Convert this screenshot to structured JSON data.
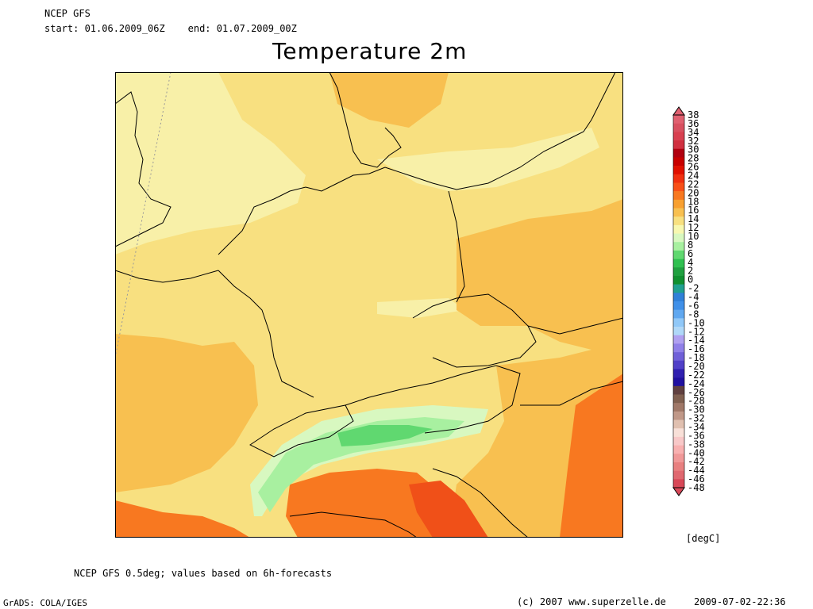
{
  "header": {
    "model": "NCEP GFS",
    "period": "start: 01.06.2009_06Z    end: 01.07.2009_00Z"
  },
  "title": "Temperature 2m",
  "colorbar": {
    "unit": "[degC]",
    "labels": [
      "38",
      "36",
      "34",
      "32",
      "30",
      "28",
      "26",
      "24",
      "22",
      "20",
      "18",
      "16",
      "14",
      "12",
      "10",
      "8",
      "6",
      "4",
      "2",
      "0",
      "-2",
      "-4",
      "-6",
      "-8",
      "-10",
      "-12",
      "-14",
      "-16",
      "-18",
      "-20",
      "-22",
      "-24",
      "-26",
      "-28",
      "-30",
      "-32",
      "-34",
      "-36",
      "-38",
      "-40",
      "-42",
      "-44",
      "-46",
      "-48"
    ],
    "colors": [
      "#e06070",
      "#d85060",
      "#d84050",
      "#d03040",
      "#b00010",
      "#c80000",
      "#e01000",
      "#f03010",
      "#f85018",
      "#f87820",
      "#f8a030",
      "#f8c050",
      "#f8e080",
      "#f8f8b0",
      "#d8f8c0",
      "#a8f0a0",
      "#60d870",
      "#30c050",
      "#20a040",
      "#109030",
      "#20a090",
      "#3080d8",
      "#4090e8",
      "#60a8f0",
      "#90c8f8",
      "#b0d8f8",
      "#b0a0f0",
      "#9080e8",
      "#7060d8",
      "#5040c8",
      "#3020b0",
      "#2010a0",
      "#604040",
      "#806050",
      "#a07868",
      "#c09888",
      "#e0c0b0",
      "#f8e0d8",
      "#f8c8c8",
      "#f8b0b0",
      "#f09898",
      "#e88080",
      "#e06870",
      "#d84858"
    ]
  },
  "footer": {
    "source": "NCEP GFS 0.5deg; values based on 6h-forecasts",
    "grads": "GrADS: COLA/IGES",
    "copyright": "(c) 2007 www.superzelle.de",
    "timestamp": "2009-07-02-22:36"
  }
}
